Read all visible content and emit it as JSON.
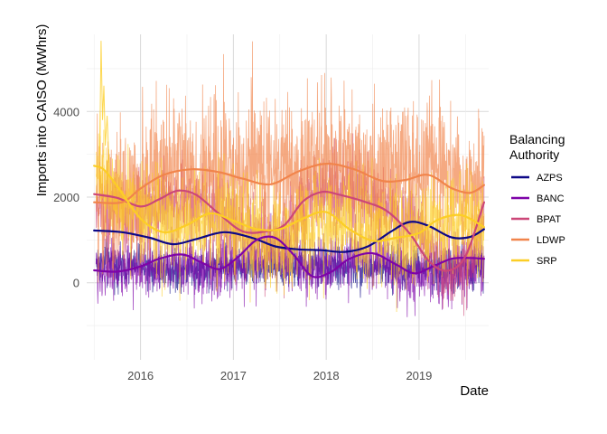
{
  "chart_data": {
    "type": "line",
    "xlabel": "Date",
    "ylabel": "Imports into CAISO (MWhrs)",
    "xlim": [
      2015.42,
      2019.75
    ],
    "ylim": [
      -1800,
      5800
    ],
    "x_ticks": [
      2016,
      2017,
      2018,
      2019
    ],
    "x_tick_labels": [
      "2016",
      "2017",
      "2018",
      "2019"
    ],
    "y_ticks": [
      0,
      2000,
      4000
    ],
    "y_tick_labels": [
      "0",
      "2000",
      "4000"
    ],
    "grid": true,
    "legend": {
      "title": "Balancing\nAuthority",
      "placement": "right"
    },
    "series": [
      {
        "name": "AZPS",
        "color": "#0d0887",
        "daily": {
          "center": [
            [
              2015.5,
              500
            ],
            [
              2015.9,
              400
            ],
            [
              2016.5,
              300
            ],
            [
              2016.9,
              400
            ],
            [
              2017.5,
              350
            ],
            [
              2017.9,
              380
            ],
            [
              2018.5,
              300
            ],
            [
              2018.9,
              400
            ],
            [
              2019.5,
              350
            ],
            [
              2019.7,
              400
            ]
          ],
          "amplitude": 250
        },
        "trend": {
          "x": [
            2015.5,
            2015.8,
            2016.1,
            2016.35,
            2016.6,
            2016.9,
            2017.2,
            2017.45,
            2017.7,
            2017.95,
            2018.2,
            2018.45,
            2018.7,
            2018.9,
            2019.1,
            2019.35,
            2019.55,
            2019.7
          ],
          "y": [
            1220,
            1180,
            1050,
            900,
            1020,
            1180,
            1050,
            850,
            780,
            760,
            720,
            850,
            1200,
            1420,
            1330,
            1060,
            1070,
            1250
          ]
        }
      },
      {
        "name": "BANC",
        "color": "#7e03a8",
        "daily": {
          "center": [
            [
              2015.5,
              350
            ],
            [
              2015.9,
              300
            ],
            [
              2016.3,
              420
            ],
            [
              2016.8,
              250
            ],
            [
              2017.2,
              600
            ],
            [
              2017.6,
              650
            ],
            [
              2017.9,
              300
            ],
            [
              2018.2,
              550
            ],
            [
              2018.6,
              500
            ],
            [
              2018.9,
              200
            ],
            [
              2019.2,
              150
            ],
            [
              2019.5,
              300
            ],
            [
              2019.7,
              500
            ]
          ],
          "amplitude": 380
        },
        "trend": {
          "x": [
            2015.5,
            2015.75,
            2016.0,
            2016.2,
            2016.45,
            2016.65,
            2016.85,
            2017.05,
            2017.25,
            2017.45,
            2017.65,
            2017.85,
            2018.05,
            2018.25,
            2018.5,
            2018.75,
            2018.95,
            2019.15,
            2019.35,
            2019.55,
            2019.7
          ],
          "y": [
            290,
            260,
            380,
            560,
            660,
            480,
            320,
            600,
            1000,
            1050,
            650,
            150,
            250,
            560,
            690,
            430,
            220,
            380,
            560,
            580,
            560
          ]
        }
      },
      {
        "name": "BPAT",
        "color": "#cc4778",
        "daily": {
          "center": [
            [
              2015.5,
              1800
            ],
            [
              2015.9,
              1500
            ],
            [
              2016.3,
              1900
            ],
            [
              2016.7,
              1800
            ],
            [
              2017.1,
              1200
            ],
            [
              2017.5,
              1000
            ],
            [
              2017.9,
              2000
            ],
            [
              2018.3,
              2100
            ],
            [
              2018.7,
              1600
            ],
            [
              2019.0,
              1200
            ],
            [
              2019.3,
              300
            ],
            [
              2019.5,
              400
            ],
            [
              2019.7,
              1500
            ]
          ],
          "amplitude": 520
        },
        "trend": {
          "x": [
            2015.5,
            2015.75,
            2016.0,
            2016.2,
            2016.4,
            2016.6,
            2016.85,
            2017.1,
            2017.35,
            2017.55,
            2017.75,
            2017.95,
            2018.15,
            2018.4,
            2018.65,
            2018.9,
            2019.1,
            2019.3,
            2019.5,
            2019.7
          ],
          "y": [
            2070,
            1980,
            1780,
            1950,
            2150,
            2050,
            1600,
            1200,
            1200,
            1350,
            1900,
            2120,
            2050,
            1900,
            1680,
            1150,
            520,
            280,
            620,
            1880
          ]
        }
      },
      {
        "name": "LDWP",
        "color": "#f1844b",
        "daily": {
          "center": [
            [
              2015.5,
              1800
            ],
            [
              2015.75,
              1700
            ],
            [
              2016.0,
              2400
            ],
            [
              2016.3,
              2700
            ],
            [
              2016.6,
              2500
            ],
            [
              2017.0,
              2600
            ],
            [
              2017.4,
              2700
            ],
            [
              2017.7,
              2400
            ],
            [
              2018.0,
              2900
            ],
            [
              2018.3,
              2700
            ],
            [
              2018.6,
              2400
            ],
            [
              2018.9,
              2700
            ],
            [
              2019.2,
              2600
            ],
            [
              2019.5,
              2300
            ],
            [
              2019.7,
              2400
            ]
          ],
          "amplitude": 900
        },
        "trend": {
          "x": [
            2015.5,
            2015.8,
            2016.0,
            2016.25,
            2016.55,
            2016.85,
            2017.1,
            2017.4,
            2017.7,
            2018.0,
            2018.3,
            2018.6,
            2018.85,
            2019.1,
            2019.35,
            2019.55,
            2019.7
          ],
          "y": [
            1880,
            1880,
            2200,
            2520,
            2650,
            2580,
            2430,
            2300,
            2600,
            2780,
            2650,
            2380,
            2400,
            2520,
            2210,
            2100,
            2280
          ]
        }
      },
      {
        "name": "SRP",
        "color": "#fcce25",
        "daily": {
          "center": [
            [
              2015.5,
              2600
            ],
            [
              2015.6,
              2300
            ],
            [
              2015.9,
              1800
            ],
            [
              2016.2,
              1400
            ],
            [
              2016.5,
              1300
            ],
            [
              2016.9,
              1500
            ],
            [
              2017.2,
              1200
            ],
            [
              2017.5,
              900
            ],
            [
              2017.9,
              1400
            ],
            [
              2018.2,
              1400
            ],
            [
              2018.5,
              1100
            ],
            [
              2018.9,
              1100
            ],
            [
              2019.2,
              1400
            ],
            [
              2019.5,
              1500
            ],
            [
              2019.7,
              1300
            ]
          ],
          "amplitude": 650
        },
        "trend": {
          "x": [
            2015.5,
            2015.6,
            2015.75,
            2016.0,
            2016.25,
            2016.5,
            2016.75,
            2017.0,
            2017.25,
            2017.5,
            2017.75,
            2018.0,
            2018.25,
            2018.5,
            2018.75,
            2019.0,
            2019.2,
            2019.45,
            2019.7
          ],
          "y": [
            2730,
            2650,
            2250,
            1500,
            1180,
            1350,
            1620,
            1450,
            1250,
            1250,
            1500,
            1650,
            1250,
            980,
            1050,
            1160,
            1470,
            1580,
            1300
          ]
        }
      }
    ]
  }
}
